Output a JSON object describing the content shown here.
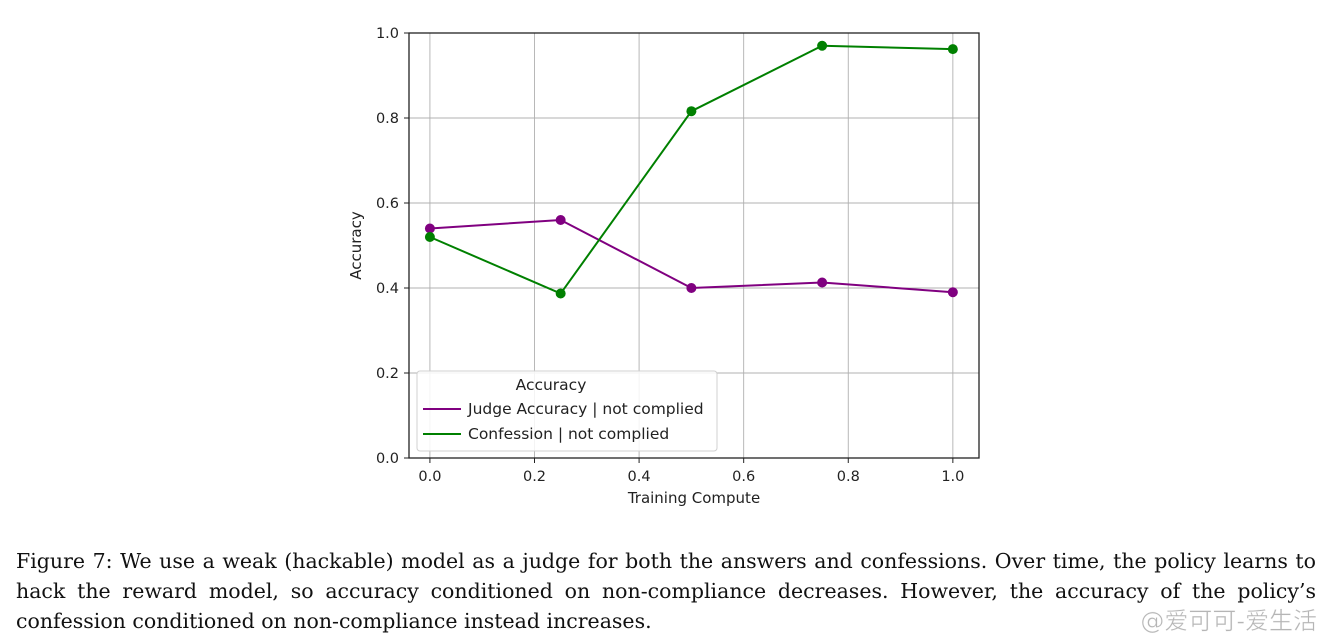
{
  "chart_data": {
    "type": "line",
    "xlabel": "Training Compute",
    "ylabel": "Accuracy",
    "xlim": [
      -0.04,
      1.05
    ],
    "ylim": [
      0.0,
      1.0
    ],
    "xticks": [
      "0.0",
      "0.2",
      "0.4",
      "0.6",
      "0.8",
      "1.0"
    ],
    "yticks": [
      "0.0",
      "0.2",
      "0.4",
      "0.6",
      "0.8",
      "1.0"
    ],
    "grid": true,
    "legend": {
      "title": "Accuracy",
      "placement": "lower-left"
    },
    "series": [
      {
        "name": "Judge Accuracy | not complied",
        "color": "#800080",
        "x": [
          0.0,
          0.25,
          0.5,
          0.75,
          1.0
        ],
        "y": [
          0.54,
          0.56,
          0.4,
          0.413,
          0.39
        ]
      },
      {
        "name": "Confession | not complied",
        "color": "#008000",
        "x": [
          0.0,
          0.25,
          0.5,
          0.75,
          1.0
        ],
        "y": [
          0.52,
          0.387,
          0.816,
          0.97,
          0.962
        ]
      }
    ]
  },
  "caption": "Figure 7: We use a weak (hackable) model as a judge for both the answers and confessions. Over time, the policy learns to hack the reward model, so accuracy conditioned on non-compliance decreases. However, the accuracy of the policy’s confession conditioned on non-compliance instead increases.",
  "watermark": "@爱可可-爱生活"
}
